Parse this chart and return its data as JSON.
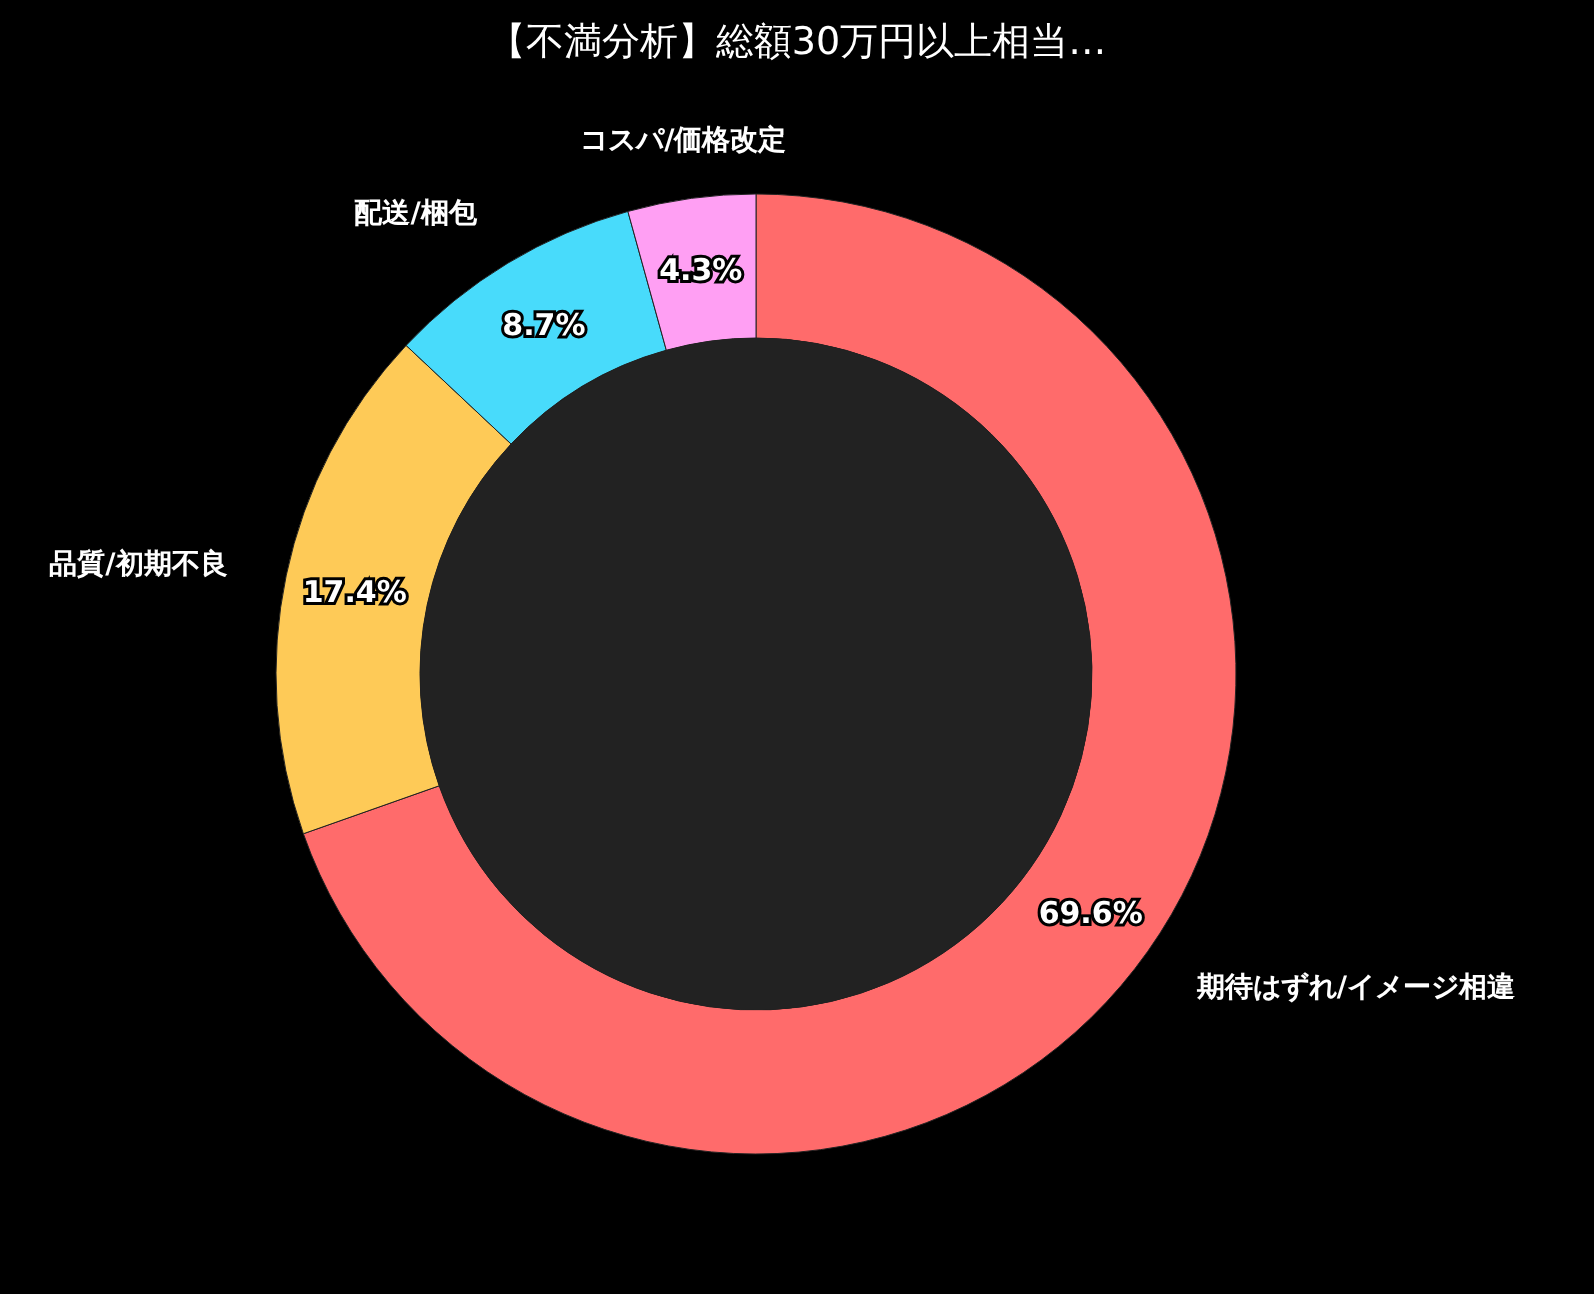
{
  "chart_data": {
    "type": "donut",
    "title": "【不満分析】総額30万円以上相当…",
    "categories": [
      "期待はずれ/イメージ相違",
      "品質/初期不良",
      "配送/梱包",
      "コスパ/価格改定"
    ],
    "values": [
      69.6,
      17.4,
      8.7,
      4.3
    ],
    "value_labels": [
      "69.6%",
      "17.4%",
      "8.7%",
      "4.3%"
    ],
    "colors": [
      "#ff6b6b",
      "#feca57",
      "#48dbfb",
      "#ff9ff3"
    ]
  }
}
